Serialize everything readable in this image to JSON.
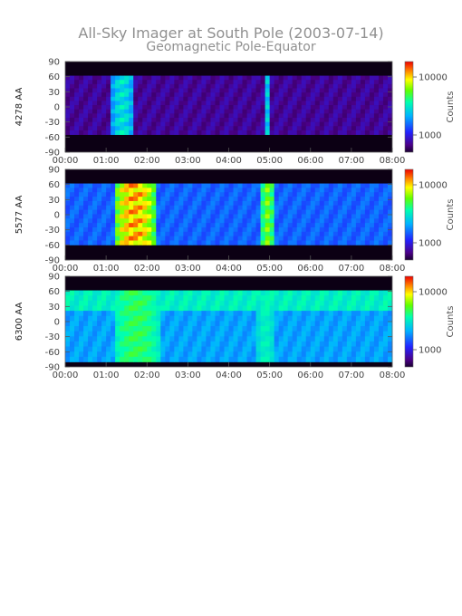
{
  "title": "All-Sky Imager at South Pole (2003-07-14)",
  "subtitle": "Geomagnetic Pole-Equator",
  "chart_data": [
    {
      "type": "heatmap",
      "ylabel": "4278 AA",
      "y_ticks": [
        "90",
        "60",
        "30",
        "0",
        "-30",
        "-60",
        "-90"
      ],
      "ylim": [
        -90,
        90
      ],
      "x_ticks": [
        "00:00",
        "01:00",
        "02:00",
        "03:00",
        "04:00",
        "05:00",
        "06:00",
        "07:00",
        "08:00"
      ],
      "xlim": [
        "00:00",
        "08:00"
      ],
      "colorbar": {
        "label": "Counts",
        "ticks": [
          "10000",
          "1000"
        ],
        "scale": "log"
      },
      "data_rows_lat": [
        -55,
        62
      ],
      "features": [
        {
          "t_start_h": 1.1,
          "t_end_h": 1.7,
          "level": 0.55
        },
        {
          "t_start_h": 4.85,
          "t_end_h": 5.05,
          "level": 0.5
        }
      ]
    },
    {
      "type": "heatmap",
      "ylabel": "5577 AA",
      "y_ticks": [
        "90",
        "60",
        "30",
        "0",
        "-30",
        "-60",
        "-90"
      ],
      "ylim": [
        -90,
        90
      ],
      "x_ticks": [
        "00:00",
        "01:00",
        "02:00",
        "03:00",
        "04:00",
        "05:00",
        "06:00",
        "07:00",
        "08:00"
      ],
      "xlim": [
        "00:00",
        "08:00"
      ],
      "colorbar": {
        "label": "Counts",
        "ticks": [
          "10000",
          "1000"
        ],
        "scale": "log"
      },
      "data_rows_lat": [
        -60,
        62
      ],
      "features": [
        {
          "t_start_h": 1.2,
          "t_end_h": 2.2,
          "level": 0.95
        },
        {
          "t_start_h": 4.8,
          "t_end_h": 5.1,
          "level": 0.75
        }
      ]
    },
    {
      "type": "heatmap",
      "ylabel": "6300 AA",
      "y_ticks": [
        "90",
        "60",
        "30",
        "0",
        "-30",
        "-60",
        "-90"
      ],
      "ylim": [
        -90,
        90
      ],
      "x_ticks": [
        "00:00",
        "01:00",
        "02:00",
        "03:00",
        "04:00",
        "05:00",
        "06:00",
        "07:00",
        "08:00"
      ],
      "xlim": [
        "00:00",
        "08:00"
      ],
      "colorbar": {
        "label": "Counts",
        "ticks": [
          "10000",
          "1000"
        ],
        "scale": "log"
      },
      "data_rows_lat": [
        -80,
        62
      ],
      "features": [
        {
          "t_start_h": 1.2,
          "t_end_h": 2.3,
          "level": 0.65
        },
        {
          "t_start_h": 4.7,
          "t_end_h": 5.1,
          "level": 0.55
        }
      ]
    }
  ]
}
